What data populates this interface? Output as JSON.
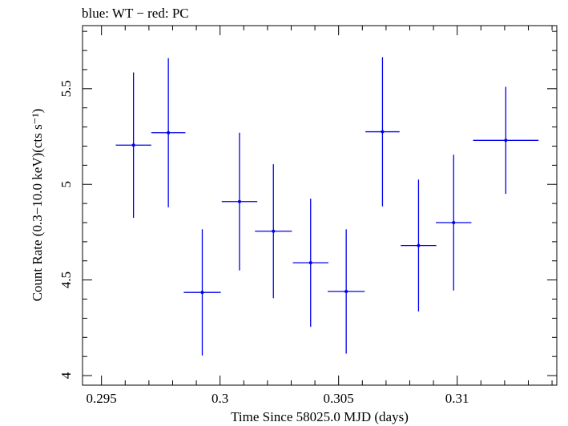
{
  "chart_data": {
    "type": "scatter",
    "title": "blue: WT − red: PC",
    "xlabel": "Time Since 58025.0 MJD (days)",
    "ylabel": "Count Rate (0.3−10.0 keV)(cts s⁻¹)",
    "xlim": [
      0.2942,
      0.3142
    ],
    "ylim": [
      3.95,
      5.83
    ],
    "x_ticks": [
      0.295,
      0.3,
      0.305,
      0.31
    ],
    "x_tick_labels": [
      "0.295",
      "0.3",
      "0.305",
      "0.31"
    ],
    "y_ticks": [
      4,
      4.5,
      5,
      5.5
    ],
    "y_tick_labels": [
      "4",
      "4.5",
      "5",
      "5.5"
    ],
    "grid": false,
    "series": [
      {
        "color": "#0000ee",
        "points": [
          {
            "x": 0.29635,
            "xerr": 0.00075,
            "y": 5.205,
            "yerr": 0.38
          },
          {
            "x": 0.29782,
            "xerr": 0.00072,
            "y": 5.27,
            "yerr": 0.39
          },
          {
            "x": 0.29925,
            "xerr": 0.00078,
            "y": 4.435,
            "yerr": 0.33
          },
          {
            "x": 0.30082,
            "xerr": 0.00075,
            "y": 4.91,
            "yerr": 0.36
          },
          {
            "x": 0.30225,
            "xerr": 0.00078,
            "y": 4.755,
            "yerr": 0.35
          },
          {
            "x": 0.30382,
            "xerr": 0.00075,
            "y": 4.59,
            "yerr": 0.335
          },
          {
            "x": 0.30532,
            "xerr": 0.00078,
            "y": 4.44,
            "yerr": 0.325
          },
          {
            "x": 0.30685,
            "xerr": 0.00072,
            "y": 5.275,
            "yerr": 0.39
          },
          {
            "x": 0.30837,
            "xerr": 0.00075,
            "y": 4.68,
            "yerr": 0.345
          },
          {
            "x": 0.30985,
            "xerr": 0.00075,
            "y": 4.8,
            "yerr": 0.355
          },
          {
            "x": 0.31205,
            "xerr": 0.00138,
            "y": 5.23,
            "yerr": 0.28
          }
        ]
      }
    ]
  }
}
